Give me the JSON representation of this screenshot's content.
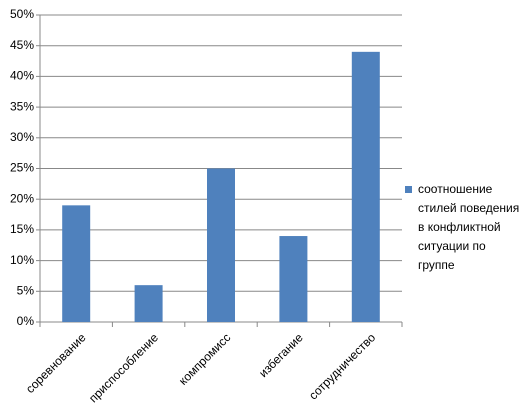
{
  "chart_data": {
    "type": "bar",
    "categories": [
      "соревнование",
      "приспособление",
      "компромисс",
      "избегание",
      "сотрудничество"
    ],
    "series": [
      {
        "name": "соотношение стилей поведения в конфликтной ситуации по группе",
        "color": "#4f81bd",
        "values": [
          19,
          6,
          25,
          14,
          44
        ]
      }
    ],
    "ylim": [
      0,
      50
    ],
    "yticks": [
      {
        "value": 0,
        "label": "0%"
      },
      {
        "value": 5,
        "label": "5%"
      },
      {
        "value": 10,
        "label": "10%"
      },
      {
        "value": 15,
        "label": "15%"
      },
      {
        "value": 20,
        "label": "20%"
      },
      {
        "value": 25,
        "label": "25%"
      },
      {
        "value": 30,
        "label": "30%"
      },
      {
        "value": 35,
        "label": "35%"
      },
      {
        "value": 40,
        "label": "40%"
      },
      {
        "value": 45,
        "label": "45%"
      },
      {
        "value": 50,
        "label": "50%"
      }
    ],
    "grid": true,
    "legend": "right"
  }
}
